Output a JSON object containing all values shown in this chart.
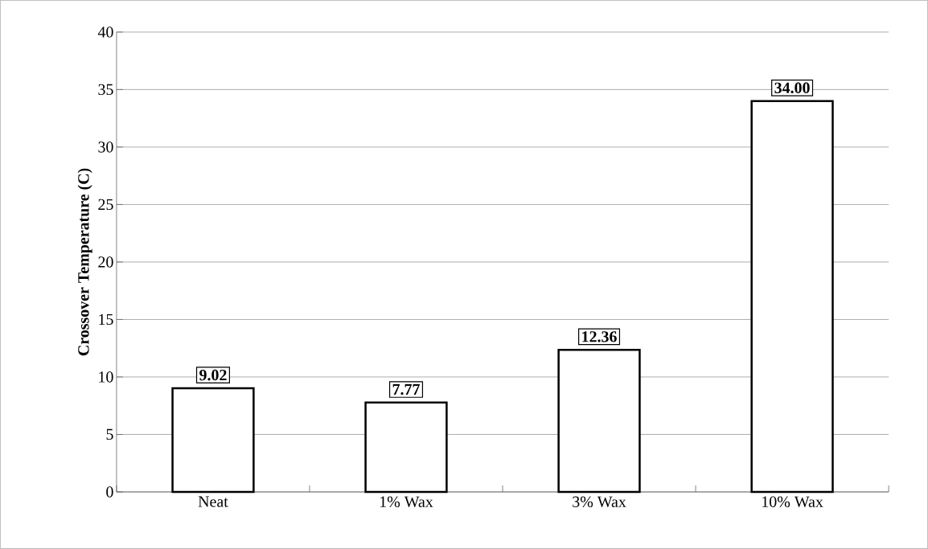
{
  "chart_data": {
    "type": "bar",
    "ylabel": "Crossover Temperature (C)",
    "categories": [
      "Neat",
      "1% Wax",
      "3% Wax",
      "10% Wax"
    ],
    "values": [
      9.02,
      7.77,
      12.36,
      34.0
    ],
    "value_labels": [
      "9.02",
      "7.77",
      "12.36",
      "34.00"
    ],
    "color": "#ffffff",
    "ylim": [
      0,
      40
    ],
    "yticks": [
      0,
      5,
      10,
      15,
      20,
      25,
      30,
      35,
      40
    ],
    "grid": "y"
  }
}
